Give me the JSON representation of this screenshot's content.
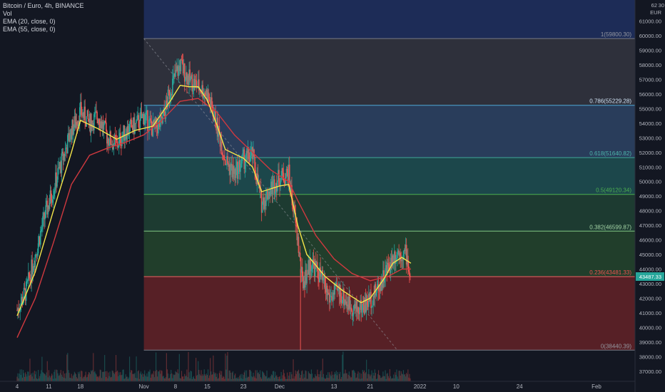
{
  "legend": {
    "symbol": "Bitcoin / Euro, 4h, BINANCE",
    "vol": "Vol",
    "ema20": "EMA (20, close, 0)",
    "ema55": "EMA (55, close, 0)"
  },
  "price_axis": {
    "currency": "EUR",
    "top_partial": "62",
    "top_partial_suffix": "30",
    "current_price_label": "43487.33"
  },
  "colors": {
    "background": "#131722",
    "fib_1_band": "#2f323d",
    "fib_786_band": "#2a3f5f",
    "fib_618_band": "#1c4a4e",
    "fib_5_band": "#1e3d33",
    "fib_382_band": "#22402c",
    "fib_236_band": "#5b2127",
    "top_band": "#1d2c57",
    "ema20": "#f5e64a",
    "ema55": "#d0393f",
    "candle_up": "#26a69a",
    "candle_down": "#ef5350"
  },
  "chart_data": {
    "type": "line",
    "title": "Bitcoin / Euro, 4h, BINANCE",
    "yaxis": {
      "range": [
        36500,
        62300
      ],
      "ticks": [
        37000,
        38000,
        39000,
        40000,
        41000,
        42000,
        43000,
        44000,
        45000,
        46000,
        47000,
        48000,
        49000,
        50000,
        51000,
        52000,
        53000,
        54000,
        55000,
        56000,
        57000,
        58000,
        59000,
        60000,
        61000
      ],
      "tick_labels": [
        "37000.00",
        "38000.00",
        "39000.00",
        "40000.00",
        "41000.00",
        "42000.00",
        "43000.00",
        "44000.00",
        "45000.00",
        "46000.00",
        "47000.00",
        "48000.00",
        "49000.00",
        "50000.00",
        "51000.00",
        "52000.00",
        "53000.00",
        "54000.00",
        "55000.00",
        "56000.00",
        "57000.00",
        "58000.00",
        "59000.00",
        "60000.00",
        "61000.00"
      ]
    },
    "xaxis": {
      "tick_labels": [
        "4",
        "11",
        "18",
        "Nov",
        "8",
        "15",
        "23",
        "Dec",
        "13",
        "21",
        "2022",
        "10",
        "24",
        "Feb"
      ],
      "tick_days": [
        4,
        11,
        18,
        32,
        39,
        46,
        54,
        62,
        74,
        82,
        93,
        101,
        115,
        132
      ],
      "range_days": [
        4,
        132
      ]
    },
    "fib_retracement": {
      "levels": [
        {
          "label": "1(59800.30)",
          "ratio": 1,
          "price": 59800.3
        },
        {
          "label": "0.786(55229.28)",
          "ratio": 0.786,
          "price": 55229.28
        },
        {
          "label": "0.618(51640.82)",
          "ratio": 0.618,
          "price": 51640.82
        },
        {
          "label": "0.5(49120.34)",
          "ratio": 0.5,
          "price": 49120.34
        },
        {
          "label": "0.382(46599.87)",
          "ratio": 0.382,
          "price": 46599.87
        },
        {
          "label": "0.236(43481.33)",
          "ratio": 0.236,
          "price": 43481.33
        },
        {
          "label": "0(38440.39)",
          "ratio": 0,
          "price": 38440.39
        }
      ],
      "start_day": 32
    },
    "price_path": [
      {
        "day": 4,
        "price": 41200
      },
      {
        "day": 6,
        "price": 42500
      },
      {
        "day": 8,
        "price": 45000
      },
      {
        "day": 10,
        "price": 47500
      },
      {
        "day": 12,
        "price": 49500
      },
      {
        "day": 14,
        "price": 51500
      },
      {
        "day": 16,
        "price": 53500
      },
      {
        "day": 18,
        "price": 54800
      },
      {
        "day": 20,
        "price": 54000
      },
      {
        "day": 22,
        "price": 54500
      },
      {
        "day": 24,
        "price": 53000
      },
      {
        "day": 26,
        "price": 52500
      },
      {
        "day": 28,
        "price": 53500
      },
      {
        "day": 30,
        "price": 53800
      },
      {
        "day": 32,
        "price": 54500
      },
      {
        "day": 34,
        "price": 53600
      },
      {
        "day": 36,
        "price": 54000
      },
      {
        "day": 38,
        "price": 56500
      },
      {
        "day": 40,
        "price": 58000
      },
      {
        "day": 42,
        "price": 57000
      },
      {
        "day": 44,
        "price": 56500
      },
      {
        "day": 46,
        "price": 56000
      },
      {
        "day": 48,
        "price": 54000
      },
      {
        "day": 50,
        "price": 51500
      },
      {
        "day": 52,
        "price": 50500
      },
      {
        "day": 54,
        "price": 51500
      },
      {
        "day": 56,
        "price": 51800
      },
      {
        "day": 58,
        "price": 48500
      },
      {
        "day": 60,
        "price": 49500
      },
      {
        "day": 62,
        "price": 50300
      },
      {
        "day": 64,
        "price": 50500
      },
      {
        "day": 66,
        "price": 46000
      },
      {
        "day": 67,
        "price": 43000
      },
      {
        "day": 69,
        "price": 44500
      },
      {
        "day": 71,
        "price": 43500
      },
      {
        "day": 73,
        "price": 42000
      },
      {
        "day": 75,
        "price": 42500
      },
      {
        "day": 77,
        "price": 41700
      },
      {
        "day": 79,
        "price": 41200
      },
      {
        "day": 81,
        "price": 41600
      },
      {
        "day": 83,
        "price": 42300
      },
      {
        "day": 85,
        "price": 43500
      },
      {
        "day": 87,
        "price": 44800
      },
      {
        "day": 88,
        "price": 45200
      },
      {
        "day": 90,
        "price": 45000
      },
      {
        "day": 91,
        "price": 43200
      }
    ],
    "ema20": [
      {
        "day": 4,
        "price": 40800
      },
      {
        "day": 8,
        "price": 43800
      },
      {
        "day": 12,
        "price": 48000
      },
      {
        "day": 16,
        "price": 52000
      },
      {
        "day": 18,
        "price": 54200
      },
      {
        "day": 22,
        "price": 53600
      },
      {
        "day": 26,
        "price": 52900
      },
      {
        "day": 30,
        "price": 53500
      },
      {
        "day": 34,
        "price": 53800
      },
      {
        "day": 38,
        "price": 55600
      },
      {
        "day": 40,
        "price": 56600
      },
      {
        "day": 42,
        "price": 56500
      },
      {
        "day": 44,
        "price": 56500
      },
      {
        "day": 46,
        "price": 55600
      },
      {
        "day": 48,
        "price": 54000
      },
      {
        "day": 50,
        "price": 52200
      },
      {
        "day": 54,
        "price": 51600
      },
      {
        "day": 56,
        "price": 51000
      },
      {
        "day": 58,
        "price": 49300
      },
      {
        "day": 62,
        "price": 49700
      },
      {
        "day": 64,
        "price": 49800
      },
      {
        "day": 66,
        "price": 47000
      },
      {
        "day": 68,
        "price": 45000
      },
      {
        "day": 72,
        "price": 43500
      },
      {
        "day": 76,
        "price": 42500
      },
      {
        "day": 80,
        "price": 41700
      },
      {
        "day": 82,
        "price": 42000
      },
      {
        "day": 85,
        "price": 43300
      },
      {
        "day": 87,
        "price": 44400
      },
      {
        "day": 89,
        "price": 44800
      },
      {
        "day": 91,
        "price": 44400
      }
    ],
    "ema55": [
      {
        "day": 4,
        "price": 39300
      },
      {
        "day": 8,
        "price": 42000
      },
      {
        "day": 12,
        "price": 45800
      },
      {
        "day": 16,
        "price": 49800
      },
      {
        "day": 20,
        "price": 51800
      },
      {
        "day": 24,
        "price": 52300
      },
      {
        "day": 28,
        "price": 52700
      },
      {
        "day": 32,
        "price": 53200
      },
      {
        "day": 36,
        "price": 54200
      },
      {
        "day": 40,
        "price": 55500
      },
      {
        "day": 44,
        "price": 55700
      },
      {
        "day": 48,
        "price": 54800
      },
      {
        "day": 52,
        "price": 53200
      },
      {
        "day": 56,
        "price": 52000
      },
      {
        "day": 60,
        "price": 50800
      },
      {
        "day": 64,
        "price": 50000
      },
      {
        "day": 66,
        "price": 48700
      },
      {
        "day": 70,
        "price": 46300
      },
      {
        "day": 74,
        "price": 44700
      },
      {
        "day": 78,
        "price": 43700
      },
      {
        "day": 82,
        "price": 43200
      },
      {
        "day": 86,
        "price": 43500
      },
      {
        "day": 89,
        "price": 44000
      },
      {
        "day": 91,
        "price": 44000
      }
    ]
  }
}
